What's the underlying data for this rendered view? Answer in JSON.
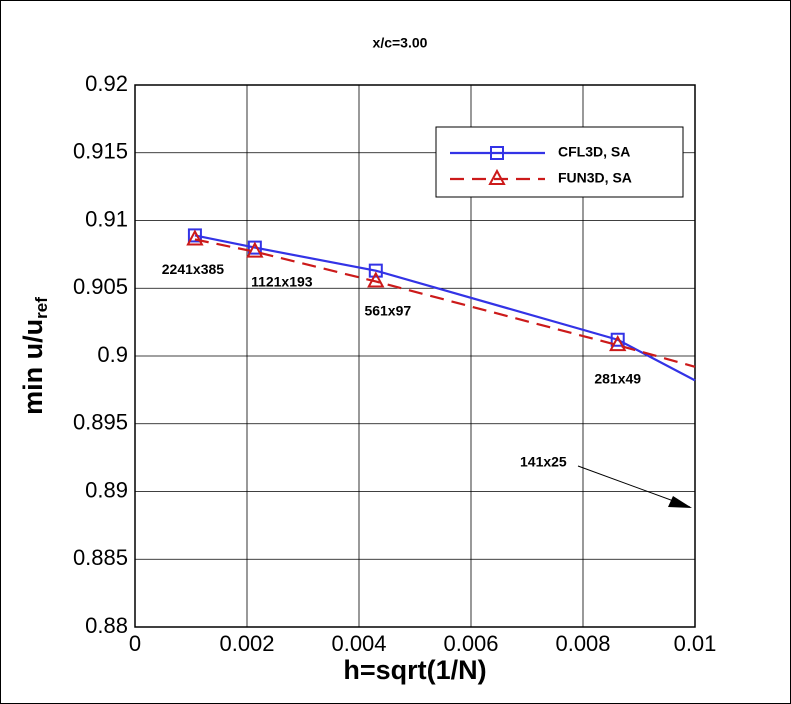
{
  "chart_data": {
    "type": "line",
    "title": "x/c=3.00",
    "xlabel": "h=sqrt(1/N)",
    "ylabel": {
      "text": "min u/u",
      "sub": "ref"
    },
    "x": [
      0.00107,
      0.00214,
      0.0043,
      0.00862,
      0.01
    ],
    "series": [
      {
        "name": "CFL3D, SA",
        "color": "#3333e6",
        "dash": false,
        "marker": "square",
        "values": [
          0.9089,
          0.908,
          0.9063,
          0.9012,
          0.8982
        ]
      },
      {
        "name": "FUN3D, SA",
        "color": "#cc1a1a",
        "dash": true,
        "marker": "triangle",
        "values": [
          0.9086,
          0.9077,
          0.9055,
          0.9008,
          0.8992
        ]
      }
    ],
    "point_labels": [
      "2241x385",
      "1121x193",
      "561x97",
      "281x49"
    ],
    "annotation": "141x25",
    "xlim": [
      0,
      0.01
    ],
    "xticks": [
      0,
      0.002,
      0.004,
      0.006,
      0.008,
      0.01
    ],
    "ylim": [
      0.88,
      0.92
    ],
    "yticks": [
      0.88,
      0.885,
      0.89,
      0.895,
      0.9,
      0.905,
      0.91,
      0.915,
      0.92
    ],
    "grid": true
  }
}
